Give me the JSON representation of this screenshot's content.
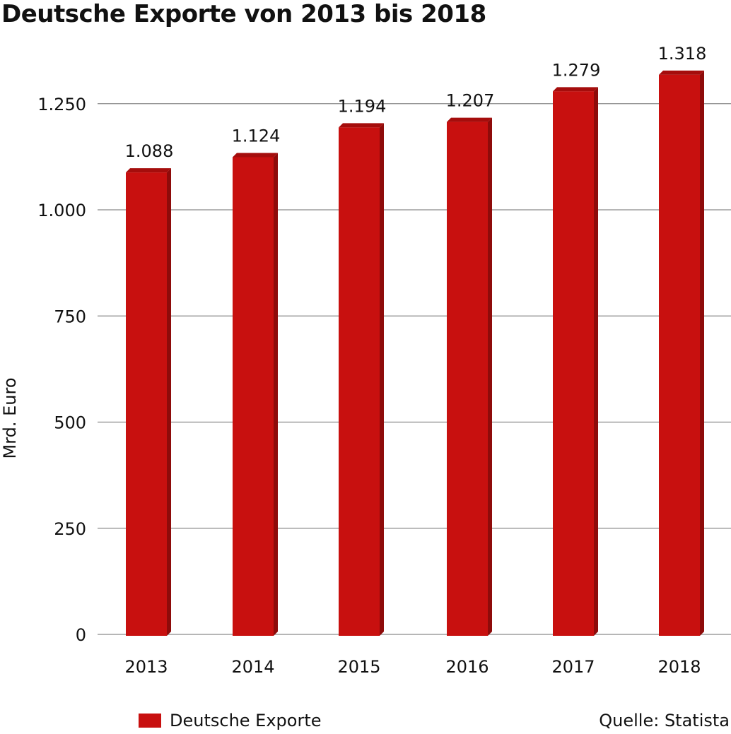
{
  "chart_data": {
    "type": "bar",
    "title": "Deutsche Exporte von 2013 bis 2018",
    "ylabel": "Mrd. Euro",
    "xlabel": "",
    "categories": [
      "2013",
      "2014",
      "2015",
      "2016",
      "2017",
      "2018"
    ],
    "series": [
      {
        "name": "Deutsche Exporte",
        "values": [
          1088,
          1124,
          1194,
          1207,
          1279,
          1318
        ],
        "labels": [
          "1.088",
          "1.124",
          "1.194",
          "1.207",
          "1.279",
          "1.318"
        ]
      }
    ],
    "ylim": [
      0,
      1350
    ],
    "yticks": [
      0,
      250,
      500,
      750,
      1000,
      1250
    ],
    "ytick_labels": [
      "0",
      "250",
      "500",
      "750",
      "1.000",
      "1.250"
    ],
    "grid": true,
    "legend_position": "bottom-left",
    "bar_color": "#c8100f",
    "bar_side_color": "#8e0b0a",
    "bar_top_color": "#a50d0c"
  },
  "source": "Quelle: Statista"
}
